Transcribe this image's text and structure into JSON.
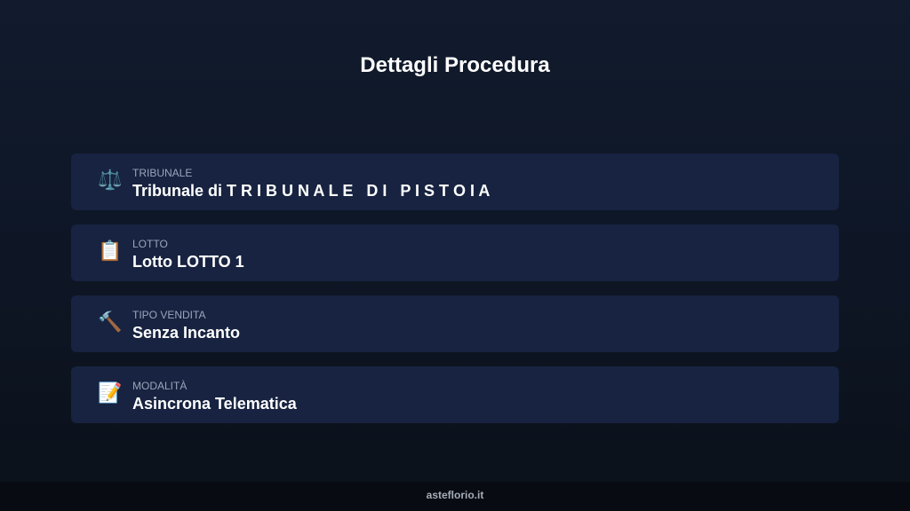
{
  "page_title": "Dettagli Procedura",
  "items": [
    {
      "icon": "scales-icon",
      "glyph": "⚖️",
      "label": "TRIBUNALE",
      "value": "Tribunale di T R I B U N A L E   D I   P I S T O I A"
    },
    {
      "icon": "clipboard-icon",
      "glyph": "📋",
      "label": "LOTTO",
      "value": "Lotto LOTTO 1"
    },
    {
      "icon": "hammer-icon",
      "glyph": "🔨",
      "label": "TIPO VENDITA",
      "value": "Senza Incanto"
    },
    {
      "icon": "document-pen-icon",
      "glyph": "📝",
      "label": "MODALITÀ",
      "value": "Asincrona Telematica"
    }
  ],
  "footer": "asteflorio.it"
}
